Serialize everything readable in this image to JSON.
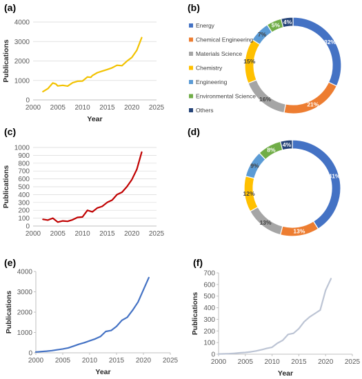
{
  "chart_data": [
    {
      "panel": "(a)",
      "type": "line",
      "color": "#f2c200",
      "xlabel": "Year",
      "ylabel": "Publications",
      "xlim": [
        2000,
        2025
      ],
      "ylim": [
        0,
        4000
      ],
      "xticks": [
        2000,
        2005,
        2010,
        2015,
        2020,
        2025
      ],
      "yticks": [
        0,
        1000,
        2000,
        3000,
        4000
      ],
      "grid": true,
      "x": [
        2002,
        2003,
        2004,
        2004.6,
        2005,
        2006,
        2007,
        2008,
        2009,
        2010,
        2011,
        2011.7,
        2012,
        2013,
        2014,
        2015,
        2016,
        2017,
        2018,
        2019,
        2020,
        2021,
        2022
      ],
      "y": [
        430,
        580,
        870,
        820,
        720,
        750,
        710,
        880,
        960,
        970,
        1180,
        1160,
        1250,
        1400,
        1480,
        1560,
        1650,
        1780,
        1760,
        1990,
        2180,
        2550,
        3200
      ]
    },
    {
      "panel": "(b)",
      "type": "pie",
      "labels": [
        "Energy",
        "Chemical Engineering",
        "Materials Science",
        "Chemistry",
        "Engineering",
        "Environmental Science",
        "Others"
      ],
      "values": [
        32,
        21,
        16,
        15,
        7,
        5,
        4
      ],
      "value_labels": [
        "32%",
        "21%",
        "16%",
        "15%",
        "7%",
        "5%",
        "4%"
      ],
      "colors": [
        "#4472c4",
        "#ed7d31",
        "#a5a5a5",
        "#ffc000",
        "#5b9bd5",
        "#70ad47",
        "#264478"
      ],
      "legend": "left"
    },
    {
      "panel": "(c)",
      "type": "line",
      "color": "#c00000",
      "xlabel": "",
      "ylabel": "Publications",
      "xlim": [
        2000,
        2025
      ],
      "ylim": [
        0,
        1000
      ],
      "xticks": [
        2000,
        2005,
        2010,
        2015,
        2020,
        2025
      ],
      "yticks": [
        0,
        100,
        200,
        300,
        400,
        500,
        600,
        700,
        800,
        900,
        1000
      ],
      "grid": true,
      "x": [
        2002,
        2003,
        2004,
        2005,
        2006,
        2007,
        2008,
        2009,
        2010,
        2011,
        2012,
        2013,
        2014,
        2015,
        2016,
        2017,
        2018,
        2019,
        2020,
        2021,
        2022
      ],
      "y": [
        85,
        75,
        100,
        50,
        65,
        60,
        80,
        110,
        115,
        200,
        180,
        230,
        250,
        300,
        330,
        400,
        430,
        500,
        590,
        720,
        940
      ]
    },
    {
      "panel": "(d)",
      "type": "pie",
      "labels": [
        "Energy",
        "Chemical Engineering",
        "Materials Science",
        "Chemistry",
        "Engineering",
        "Environmental Science",
        "Others"
      ],
      "values": [
        41,
        13,
        13,
        12,
        9,
        8,
        4
      ],
      "value_labels": [
        "41%",
        "13%",
        "13%",
        "12%",
        "9%",
        "8%",
        "4%"
      ],
      "colors": [
        "#4472c4",
        "#ed7d31",
        "#a5a5a5",
        "#ffc000",
        "#5b9bd5",
        "#70ad47",
        "#264478"
      ]
    },
    {
      "panel": "(e)",
      "type": "line",
      "color": "#4472c4",
      "xlabel": "Year",
      "ylabel": "Publications",
      "xlim": [
        2000,
        2025
      ],
      "ylim": [
        0,
        4000
      ],
      "xticks": [
        2000,
        2005,
        2010,
        2015,
        2020,
        2025
      ],
      "yticks": [
        0,
        1000,
        2000,
        3000,
        4000
      ],
      "grid": false,
      "x": [
        2000,
        2001,
        2002,
        2003,
        2004,
        2005,
        2006,
        2007,
        2008,
        2009,
        2010,
        2011,
        2012,
        2013,
        2014,
        2015,
        2016,
        2017,
        2018,
        2019,
        2020,
        2021
      ],
      "y": [
        40,
        60,
        80,
        110,
        150,
        190,
        240,
        330,
        420,
        500,
        590,
        680,
        800,
        1050,
        1100,
        1300,
        1600,
        1750,
        2100,
        2500,
        3100,
        3700
      ]
    },
    {
      "panel": "(f)",
      "type": "line",
      "color": "#bcc4d4",
      "xlabel": "Year",
      "ylabel": "Publications",
      "xlim": [
        2000,
        2025
      ],
      "ylim": [
        0,
        700
      ],
      "xticks": [
        2000,
        2005,
        2010,
        2015,
        2020,
        2025
      ],
      "yticks": [
        0,
        100,
        200,
        300,
        400,
        500,
        600,
        700
      ],
      "grid": false,
      "x": [
        2000,
        2001,
        2002,
        2003,
        2004,
        2005,
        2006,
        2007,
        2008,
        2009,
        2010,
        2011,
        2012,
        2013,
        2014,
        2015,
        2016,
        2017,
        2018,
        2019,
        2020,
        2021
      ],
      "y": [
        2,
        3,
        5,
        8,
        12,
        15,
        20,
        28,
        38,
        50,
        60,
        95,
        120,
        170,
        180,
        220,
        280,
        320,
        350,
        380,
        550,
        650
      ]
    }
  ]
}
